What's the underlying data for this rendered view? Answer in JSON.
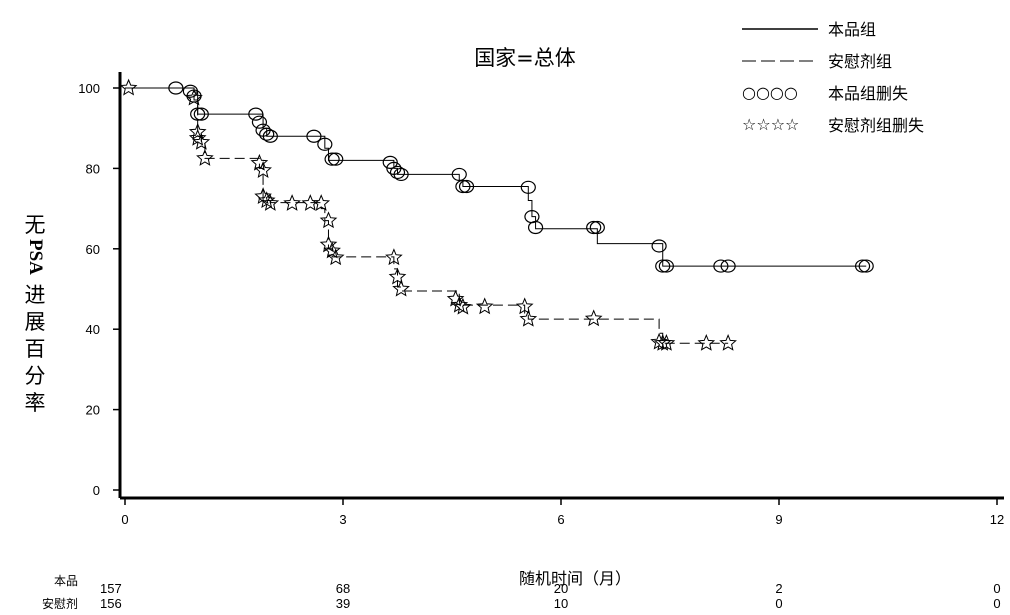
{
  "chart_data": {
    "type": "line",
    "title": "国家=总体",
    "xlabel": "随机时间（月）",
    "ylabel_parts": [
      "无",
      "PSA",
      "进",
      "展",
      "百",
      "分",
      "率"
    ],
    "xlim": [
      0,
      12
    ],
    "ylim": [
      0,
      100
    ],
    "xticks": [
      0,
      3,
      6,
      9,
      12
    ],
    "yticks": [
      0,
      20,
      40,
      60,
      80,
      100
    ],
    "xtick_labels": [
      "0",
      "3",
      "6",
      "9",
      "12"
    ],
    "ytick_labels": [
      "0",
      "20",
      "40",
      "60",
      "80",
      "100"
    ],
    "legend_position": "top-right",
    "legend": [
      {
        "key": "line-solid",
        "label": "本品组"
      },
      {
        "key": "line-dashed",
        "label": "安慰剂组"
      },
      {
        "key_text": "○○○○",
        "label": "本品组删失"
      },
      {
        "key_text": "☆☆☆☆",
        "label": "安慰剂组删失"
      }
    ],
    "series": [
      {
        "name": "本品组",
        "style": "solid",
        "steps": [
          [
            0,
            100
          ],
          [
            0.95,
            99
          ],
          [
            1.0,
            93.5
          ],
          [
            1.9,
            90
          ],
          [
            1.95,
            88
          ],
          [
            2.75,
            85
          ],
          [
            2.8,
            82
          ],
          [
            3.7,
            80
          ],
          [
            3.75,
            78.5
          ],
          [
            4.6,
            77
          ],
          [
            4.65,
            75.5
          ],
          [
            5.55,
            72
          ],
          [
            5.6,
            68
          ],
          [
            5.65,
            65
          ],
          [
            6.5,
            61.3
          ],
          [
            7.4,
            55.7
          ],
          [
            10.2,
            55.7
          ]
        ],
        "censored": [
          [
            0.7,
            100
          ],
          [
            0.9,
            99.2
          ],
          [
            0.95,
            98
          ],
          [
            1.0,
            93.5
          ],
          [
            1.05,
            93.5
          ],
          [
            1.8,
            93.5
          ],
          [
            1.85,
            91.5
          ],
          [
            1.9,
            89.5
          ],
          [
            1.95,
            88.5
          ],
          [
            2.0,
            88
          ],
          [
            2.6,
            88
          ],
          [
            2.75,
            86
          ],
          [
            2.85,
            82.3
          ],
          [
            2.9,
            82.3
          ],
          [
            3.65,
            81.5
          ],
          [
            3.7,
            80
          ],
          [
            3.75,
            79
          ],
          [
            3.8,
            78.5
          ],
          [
            4.6,
            78.5
          ],
          [
            4.65,
            75.5
          ],
          [
            4.7,
            75.5
          ],
          [
            5.55,
            75.3
          ],
          [
            5.6,
            68
          ],
          [
            5.65,
            65.3
          ],
          [
            6.45,
            65.3
          ],
          [
            6.5,
            65.3
          ],
          [
            7.35,
            60.7
          ],
          [
            7.4,
            55.7
          ],
          [
            7.45,
            55.7
          ],
          [
            8.2,
            55.7
          ],
          [
            8.3,
            55.7
          ],
          [
            10.15,
            55.7
          ],
          [
            10.2,
            55.7
          ]
        ]
      },
      {
        "name": "安慰剂组",
        "style": "dashed",
        "steps": [
          [
            0,
            100
          ],
          [
            0.95,
            97
          ],
          [
            1.0,
            88
          ],
          [
            1.05,
            86.5
          ],
          [
            1.1,
            82.5
          ],
          [
            1.85,
            80
          ],
          [
            1.9,
            72
          ],
          [
            2.0,
            71.5
          ],
          [
            2.7,
            70
          ],
          [
            2.75,
            67
          ],
          [
            2.8,
            60
          ],
          [
            2.85,
            58
          ],
          [
            3.7,
            55
          ],
          [
            3.75,
            50.5
          ],
          [
            3.8,
            49.5
          ],
          [
            4.6,
            47
          ],
          [
            4.65,
            46
          ],
          [
            5.5,
            44
          ],
          [
            5.55,
            42.5
          ],
          [
            7.35,
            39
          ],
          [
            7.4,
            36.5
          ],
          [
            8.3,
            36.5
          ]
        ],
        "censored": [
          [
            0.05,
            100
          ],
          [
            0.95,
            97.5
          ],
          [
            1.0,
            89
          ],
          [
            1.0,
            87.5
          ],
          [
            1.05,
            86.5
          ],
          [
            1.1,
            82.5
          ],
          [
            1.85,
            81.3
          ],
          [
            1.9,
            79.5
          ],
          [
            1.9,
            73
          ],
          [
            1.95,
            72
          ],
          [
            2.0,
            71.3
          ],
          [
            2.3,
            71.3
          ],
          [
            2.55,
            71.3
          ],
          [
            2.7,
            71.3
          ],
          [
            2.8,
            67
          ],
          [
            2.8,
            61
          ],
          [
            2.85,
            59.5
          ],
          [
            2.9,
            57.8
          ],
          [
            3.7,
            57.8
          ],
          [
            3.75,
            53
          ],
          [
            3.8,
            50
          ],
          [
            4.55,
            47.5
          ],
          [
            4.6,
            46
          ],
          [
            4.65,
            45.5
          ],
          [
            4.95,
            45.6
          ],
          [
            5.5,
            45.6
          ],
          [
            5.55,
            42.5
          ],
          [
            6.45,
            42.6
          ],
          [
            7.35,
            36.8
          ],
          [
            7.4,
            36.5
          ],
          [
            7.45,
            36.5
          ],
          [
            8.0,
            36.5
          ],
          [
            8.3,
            36.5
          ]
        ]
      }
    ],
    "risk_table": {
      "rows": [
        {
          "label": "本品",
          "values": [
            "157",
            "68",
            "20",
            "2",
            "0"
          ]
        },
        {
          "label": "安慰剂",
          "values": [
            "156",
            "39",
            "10",
            "0",
            "0"
          ]
        }
      ]
    }
  }
}
